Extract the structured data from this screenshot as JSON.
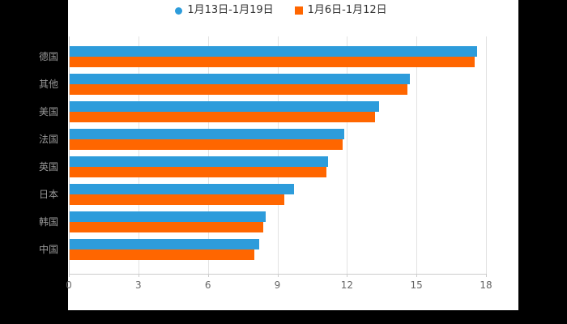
{
  "colors": {
    "background": "#000000",
    "plot_background": "#ffffff",
    "grid_line": "#e3e3e3",
    "axis_line": "#cccccc",
    "category_label": "#999999",
    "tick_label": "#666666",
    "legend_text": "#333333",
    "series_blue": "#2D9CDB",
    "series_orange": "#FF6600"
  },
  "legend": {
    "items": [
      {
        "label": "1月13日-1月19日",
        "marker": "circle",
        "color": "#2D9CDB"
      },
      {
        "label": "1月6日-1月12日",
        "marker": "square",
        "color": "#FF6600"
      }
    ]
  },
  "chart_data": {
    "type": "bar",
    "orientation": "horizontal",
    "title": "",
    "xlabel": "",
    "ylabel": "",
    "categories": [
      "德国",
      "其他",
      "美国",
      "法国",
      "英国",
      "日本",
      "韩国",
      "中国"
    ],
    "series": [
      {
        "name": "1月13日-1月19日",
        "color": "#2D9CDB",
        "values": [
          17.6,
          14.7,
          13.4,
          11.9,
          11.2,
          9.7,
          8.5,
          8.2
        ]
      },
      {
        "name": "1月6日-1月12日",
        "color": "#FF6600",
        "values": [
          17.5,
          14.6,
          13.2,
          11.8,
          11.1,
          9.3,
          8.4,
          8.0
        ]
      }
    ],
    "x_ticks": [
      0,
      3,
      6,
      9,
      12,
      15,
      18
    ],
    "xlim": [
      0,
      18
    ],
    "grid": true,
    "legend_position": "top-center"
  }
}
